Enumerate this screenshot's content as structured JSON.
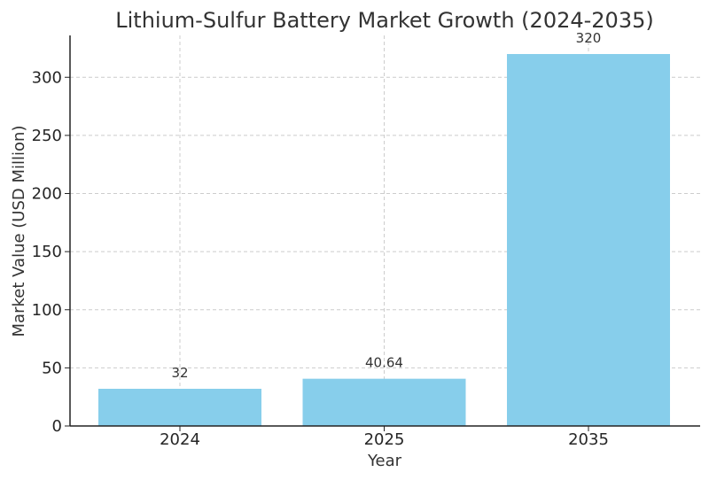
{
  "chart_data": {
    "type": "bar",
    "title": "Lithium-Sulfur Battery Market Growth (2024-2035)",
    "xlabel": "Year",
    "ylabel": "Market Value (USD Million)",
    "categories": [
      "2024",
      "2025",
      "2035"
    ],
    "values": [
      32,
      40.64,
      320
    ],
    "data_labels": [
      "32",
      "40.64",
      "320"
    ],
    "ylim": [
      0,
      336
    ],
    "yticks": [
      0,
      50,
      100,
      150,
      200,
      250,
      300
    ],
    "grid": true,
    "bar_color": "#87CEEB"
  }
}
